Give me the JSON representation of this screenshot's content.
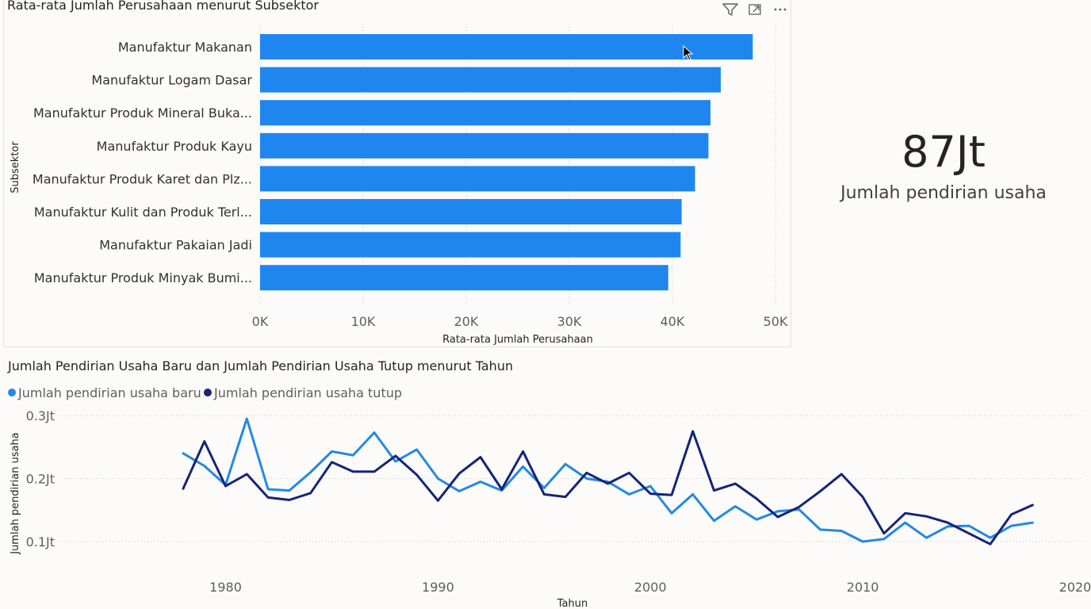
{
  "bar_visual": {
    "title": "Rata-rata Jumlah Perusahaan menurut Subsektor",
    "header_icons": [
      "filter-icon",
      "focus-mode-icon",
      "more-options-icon"
    ]
  },
  "kpi_card": {
    "value": "87Jt",
    "label": "Jumlah pendirian usaha"
  },
  "line_visual": {
    "title": "Jumlah Pendirian Usaha Baru dan Jumlah Pendirian Usaha Tutup menurut Tahun"
  },
  "colors": {
    "bar": "#1f86f0",
    "series_new": "#2389e3",
    "series_closed": "#152478",
    "grid": "#c8c6c4"
  },
  "chart_data": [
    {
      "type": "bar",
      "orientation": "horizontal",
      "title": "Rata-rata Jumlah Perusahaan menurut Subsektor",
      "xlabel": "Rata-rata Jumlah Perusahaan",
      "ylabel": "Subsektor",
      "categories": [
        "Manufaktur Makanan",
        "Manufaktur Logam Dasar",
        "Manufaktur Produk Mineral Buka...",
        "Manufaktur Produk Kayu",
        "Manufaktur Produk Karet dan Plz...",
        "Manufaktur Kulit dan Produk Terl...",
        "Manufaktur Pakaian Jadi",
        "Manufaktur Produk Minyak Bumi..."
      ],
      "values": [
        47800,
        44700,
        43700,
        43500,
        42200,
        40900,
        40800,
        39600
      ],
      "xlim": [
        0,
        50000
      ],
      "xticks": [
        0,
        10000,
        20000,
        30000,
        40000,
        50000
      ],
      "xtick_labels": [
        "0K",
        "10K",
        "20K",
        "30K",
        "40K",
        "50K"
      ],
      "grid": true
    },
    {
      "type": "line",
      "title": "Jumlah Pendirian Usaha Baru dan Jumlah Pendirian Usaha Tutup menurut Tahun",
      "xlabel": "Tahun",
      "ylabel": "Jumlah pendirian usaha",
      "x": [
        1978,
        1979,
        1980,
        1981,
        1982,
        1983,
        1984,
        1985,
        1986,
        1987,
        1988,
        1989,
        1990,
        1991,
        1992,
        1993,
        1994,
        1995,
        1996,
        1997,
        1998,
        1999,
        2000,
        2001,
        2002,
        2003,
        2004,
        2005,
        2006,
        2007,
        2008,
        2009,
        2010,
        2011,
        2012,
        2013,
        2014,
        2015,
        2016,
        2017,
        2018
      ],
      "series": [
        {
          "name": "Jumlah pendirian usaha baru",
          "values": [
            0.24,
            0.22,
            0.19,
            0.295,
            0.183,
            0.181,
            0.21,
            0.243,
            0.237,
            0.273,
            0.227,
            0.246,
            0.2,
            0.18,
            0.195,
            0.181,
            0.219,
            0.185,
            0.223,
            0.2,
            0.195,
            0.175,
            0.188,
            0.145,
            0.175,
            0.133,
            0.156,
            0.135,
            0.148,
            0.151,
            0.119,
            0.117,
            0.1,
            0.104,
            0.13,
            0.106,
            0.124,
            0.125,
            0.106,
            0.125,
            0.13
          ]
        },
        {
          "name": "Jumlah pendirian usaha tutup",
          "values": [
            0.184,
            0.259,
            0.188,
            0.207,
            0.17,
            0.166,
            0.177,
            0.226,
            0.211,
            0.211,
            0.236,
            0.206,
            0.165,
            0.208,
            0.234,
            0.183,
            0.243,
            0.175,
            0.171,
            0.209,
            0.192,
            0.209,
            0.176,
            0.174,
            0.275,
            0.181,
            0.192,
            0.168,
            0.139,
            0.155,
            0.18,
            0.207,
            0.171,
            0.113,
            0.145,
            0.14,
            0.13,
            0.113,
            0.096,
            0.143,
            0.158
          ]
        }
      ],
      "xlim": [
        1975.5,
        2020
      ],
      "ylim": [
        0.05,
        0.31
      ],
      "xticks": [
        1980,
        1990,
        2000,
        2010,
        2020
      ],
      "xtick_labels": [
        "1980",
        "1990",
        "2000",
        "2010",
        "2020"
      ],
      "yticks": [
        0.1,
        0.2,
        0.3
      ],
      "ytick_labels": [
        "0.1Jt",
        "0.2Jt",
        "0.3Jt"
      ],
      "legend_position": "top-left",
      "grid": true
    }
  ]
}
